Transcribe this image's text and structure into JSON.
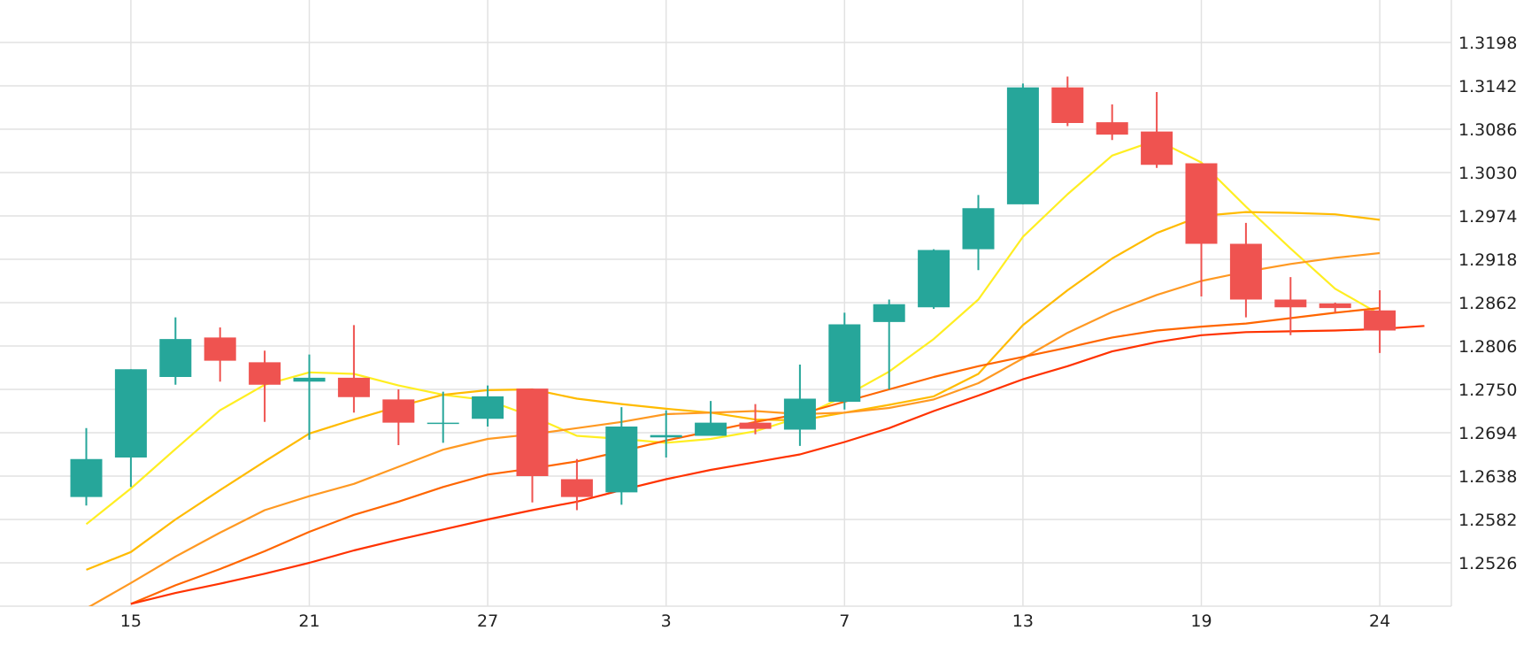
{
  "chart_data": {
    "type": "candlestick",
    "title": "",
    "xlabel": "",
    "ylabel": "",
    "x_ticks": [
      {
        "label": "15",
        "index": 1
      },
      {
        "label": "21",
        "index": 5
      },
      {
        "label": "27",
        "index": 9
      },
      {
        "label": "3",
        "index": 13
      },
      {
        "label": "7",
        "index": 17
      },
      {
        "label": "13",
        "index": 21
      },
      {
        "label": "19",
        "index": 25
      },
      {
        "label": "24",
        "index": 29
      }
    ],
    "y_ticks": [
      "1.3198",
      "1.3142",
      "1.3086",
      "1.3030",
      "1.2974",
      "1.2918",
      "1.2862",
      "1.2806",
      "1.2750",
      "1.2694",
      "1.2638",
      "1.2582",
      "1.2526"
    ],
    "ylim": [
      1.247,
      1.325
    ],
    "grid": true,
    "candles": [
      {
        "o": 1.2611,
        "h": 1.27,
        "l": 1.26,
        "c": 1.266
      },
      {
        "o": 1.2662,
        "h": 1.2776,
        "l": 1.2624,
        "c": 1.2776
      },
      {
        "o": 1.2766,
        "h": 1.2843,
        "l": 1.2756,
        "c": 1.2815
      },
      {
        "o": 1.2817,
        "h": 1.283,
        "l": 1.276,
        "c": 1.2787
      },
      {
        "o": 1.2785,
        "h": 1.28,
        "l": 1.2708,
        "c": 1.2756
      },
      {
        "o": 1.276,
        "h": 1.2795,
        "l": 1.2685,
        "c": 1.2765
      },
      {
        "o": 1.2765,
        "h": 1.2833,
        "l": 1.272,
        "c": 1.274
      },
      {
        "o": 1.2737,
        "h": 1.275,
        "l": 1.2678,
        "c": 1.2707
      },
      {
        "o": 1.2707,
        "h": 1.2747,
        "l": 1.2681,
        "c": 1.2707
      },
      {
        "o": 1.2712,
        "h": 1.2755,
        "l": 1.2702,
        "c": 1.2741
      },
      {
        "o": 1.2751,
        "h": 1.2751,
        "l": 1.2604,
        "c": 1.2638
      },
      {
        "o": 1.2634,
        "h": 1.266,
        "l": 1.2594,
        "c": 1.2611
      },
      {
        "o": 1.2617,
        "h": 1.2727,
        "l": 1.2601,
        "c": 1.2702
      },
      {
        "o": 1.2688,
        "h": 1.2723,
        "l": 1.2662,
        "c": 1.2691
      },
      {
        "o": 1.269,
        "h": 1.2735,
        "l": 1.269,
        "c": 1.2707
      },
      {
        "o": 1.2707,
        "h": 1.2731,
        "l": 1.2692,
        "c": 1.2699
      },
      {
        "o": 1.2698,
        "h": 1.2782,
        "l": 1.2677,
        "c": 1.2738
      },
      {
        "o": 1.2734,
        "h": 1.2849,
        "l": 1.2724,
        "c": 1.2834
      },
      {
        "o": 1.2837,
        "h": 1.2866,
        "l": 1.275,
        "c": 1.286
      },
      {
        "o": 1.2856,
        "h": 1.2931,
        "l": 1.2854,
        "c": 1.293
      },
      {
        "o": 1.2931,
        "h": 1.3001,
        "l": 1.2904,
        "c": 1.2984
      },
      {
        "o": 1.2989,
        "h": 1.3145,
        "l": 1.2989,
        "c": 1.314
      },
      {
        "o": 1.314,
        "h": 1.3154,
        "l": 1.309,
        "c": 1.3094
      },
      {
        "o": 1.3095,
        "h": 1.3118,
        "l": 1.3072,
        "c": 1.3079
      },
      {
        "o": 1.3083,
        "h": 1.3134,
        "l": 1.3036,
        "c": 1.304
      },
      {
        "o": 1.3042,
        "h": 1.3042,
        "l": 1.287,
        "c": 1.2938
      },
      {
        "o": 1.2938,
        "h": 1.2965,
        "l": 1.2843,
        "c": 1.2866
      },
      {
        "o": 1.2866,
        "h": 1.2895,
        "l": 1.282,
        "c": 1.2856
      },
      {
        "o": 1.2861,
        "h": 1.2862,
        "l": 1.2849,
        "c": 1.2855
      },
      {
        "o": 1.2852,
        "h": 1.2878,
        "l": 1.2797,
        "c": 1.2826
      }
    ],
    "moving_averages": [
      {
        "color": "#ffee22",
        "start_index": 0,
        "values": [
          1.2576,
          1.2622,
          1.2673,
          1.2723,
          1.2756,
          1.2772,
          1.277,
          1.2755,
          1.2743,
          1.2736,
          1.2715,
          1.269,
          1.2686,
          1.2681,
          1.2686,
          1.2696,
          1.2714,
          1.2741,
          1.2773,
          1.2815,
          1.2866,
          1.2947,
          1.3002,
          1.3052,
          1.3072,
          1.3043,
          1.2986,
          1.2932,
          1.288,
          1.2847
        ]
      },
      {
        "color": "#ffbb00",
        "start_index": 0,
        "values": [
          1.2517,
          1.254,
          1.2582,
          1.262,
          1.2657,
          1.2693,
          1.2711,
          1.2728,
          1.2743,
          1.2749,
          1.275,
          1.2738,
          1.2731,
          1.2725,
          1.272,
          1.2711,
          1.271,
          1.272,
          1.273,
          1.2741,
          1.277,
          1.2833,
          1.2878,
          1.2919,
          1.2952,
          1.2974,
          1.2979,
          1.2978,
          1.2976,
          1.2969
        ]
      },
      {
        "color": "#ff9922",
        "start_index": 0,
        "values": [
          1.2467,
          1.25,
          1.2534,
          1.2565,
          1.2594,
          1.2612,
          1.2628,
          1.265,
          1.2672,
          1.2686,
          1.2692,
          1.27,
          1.2708,
          1.2718,
          1.272,
          1.2722,
          1.2718,
          1.272,
          1.2726,
          1.2737,
          1.2758,
          1.279,
          1.2823,
          1.285,
          1.2872,
          1.289,
          1.2902,
          1.2912,
          1.292,
          1.2926
        ]
      },
      {
        "color": "#ff6600",
        "start_index": 1,
        "values": [
          1.2473,
          1.2497,
          1.2518,
          1.2541,
          1.2566,
          1.2588,
          1.2605,
          1.2624,
          1.264,
          1.2648,
          1.2657,
          1.267,
          1.2684,
          1.2696,
          1.2708,
          1.2718,
          1.2734,
          1.275,
          1.2766,
          1.278,
          1.2792,
          1.2804,
          1.2817,
          1.2826,
          1.2831,
          1.2835,
          1.2842,
          1.2849,
          1.2855
        ]
      },
      {
        "color": "#ff3300",
        "start_index": 1,
        "values": [
          1.2473,
          1.2487,
          1.2499,
          1.2512,
          1.2526,
          1.2542,
          1.2556,
          1.2569,
          1.2582,
          1.2594,
          1.2605,
          1.262,
          1.2634,
          1.2646,
          1.2656,
          1.2666,
          1.2682,
          1.27,
          1.2722,
          1.2742,
          1.2763,
          1.278,
          1.2799,
          1.2811,
          1.282,
          1.2824,
          1.2825,
          1.2826,
          1.2828,
          1.2832
        ]
      }
    ],
    "colors": {
      "up": "#26a69a",
      "down": "#ef5350",
      "grid": "#e2e2e2"
    }
  }
}
